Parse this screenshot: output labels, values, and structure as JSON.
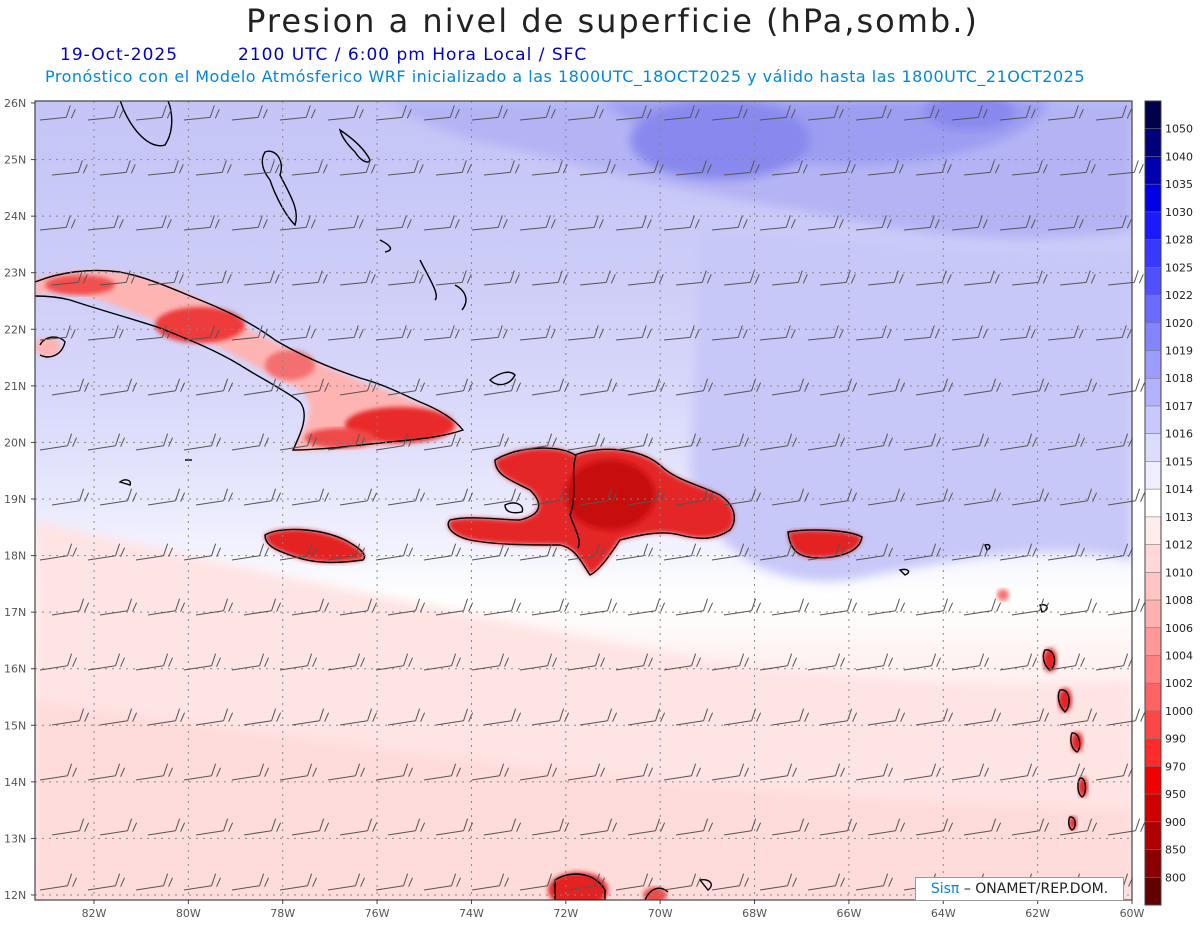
{
  "header": {
    "title": "Presion a nivel de superficie (hPa,somb.)",
    "date": "19-Oct-2025",
    "time": "2100 UTC / 6:00 pm Hora Local / SFC",
    "forecast_note": "Pronóstico con el Modelo Atmósferico WRF inicializado a las 1800UTC_18OCT2025 y válido hasta las  1800UTC_21OCT2025"
  },
  "axes": {
    "lat_labels": [
      "26N",
      "25N",
      "24N",
      "23N",
      "22N",
      "21N",
      "20N",
      "19N",
      "18N",
      "17N",
      "16N",
      "15N",
      "14N",
      "13N",
      "12N"
    ],
    "lon_labels": [
      "82W",
      "80W",
      "78W",
      "76W",
      "74W",
      "72W",
      "70W",
      "68W",
      "66W",
      "64W",
      "62W",
      "60W"
    ]
  },
  "colorbar": {
    "levels": [
      "1050",
      "1040",
      "1035",
      "1030",
      "1028",
      "1025",
      "1022",
      "1020",
      "1019",
      "1018",
      "1017",
      "1016",
      "1015",
      "1014",
      "1013",
      "1012",
      "1010",
      "1008",
      "1006",
      "1004",
      "1002",
      "1000",
      "990",
      "970",
      "950",
      "900",
      "850",
      "800"
    ],
    "colors": [
      "#00004a",
      "#00007a",
      "#0000b0",
      "#0000e6",
      "#1a1aff",
      "#3838ff",
      "#5050ff",
      "#6a6aff",
      "#8484ff",
      "#9c9cff",
      "#b2b2ff",
      "#c8c8ff",
      "#dcdcff",
      "#eeeeff",
      "#ffffff",
      "#ffecec",
      "#ffd8d8",
      "#ffc4c4",
      "#ffb0b0",
      "#ff9898",
      "#ff8080",
      "#ff6464",
      "#ff4646",
      "#ff2a2a",
      "#f00000",
      "#d00000",
      "#b00000",
      "#8a0000",
      "#600000"
    ]
  },
  "credit": {
    "brand": "SisPi",
    "brand_symbol": "Sisπ",
    "org": "– ONAMET/REP.DOM."
  }
}
